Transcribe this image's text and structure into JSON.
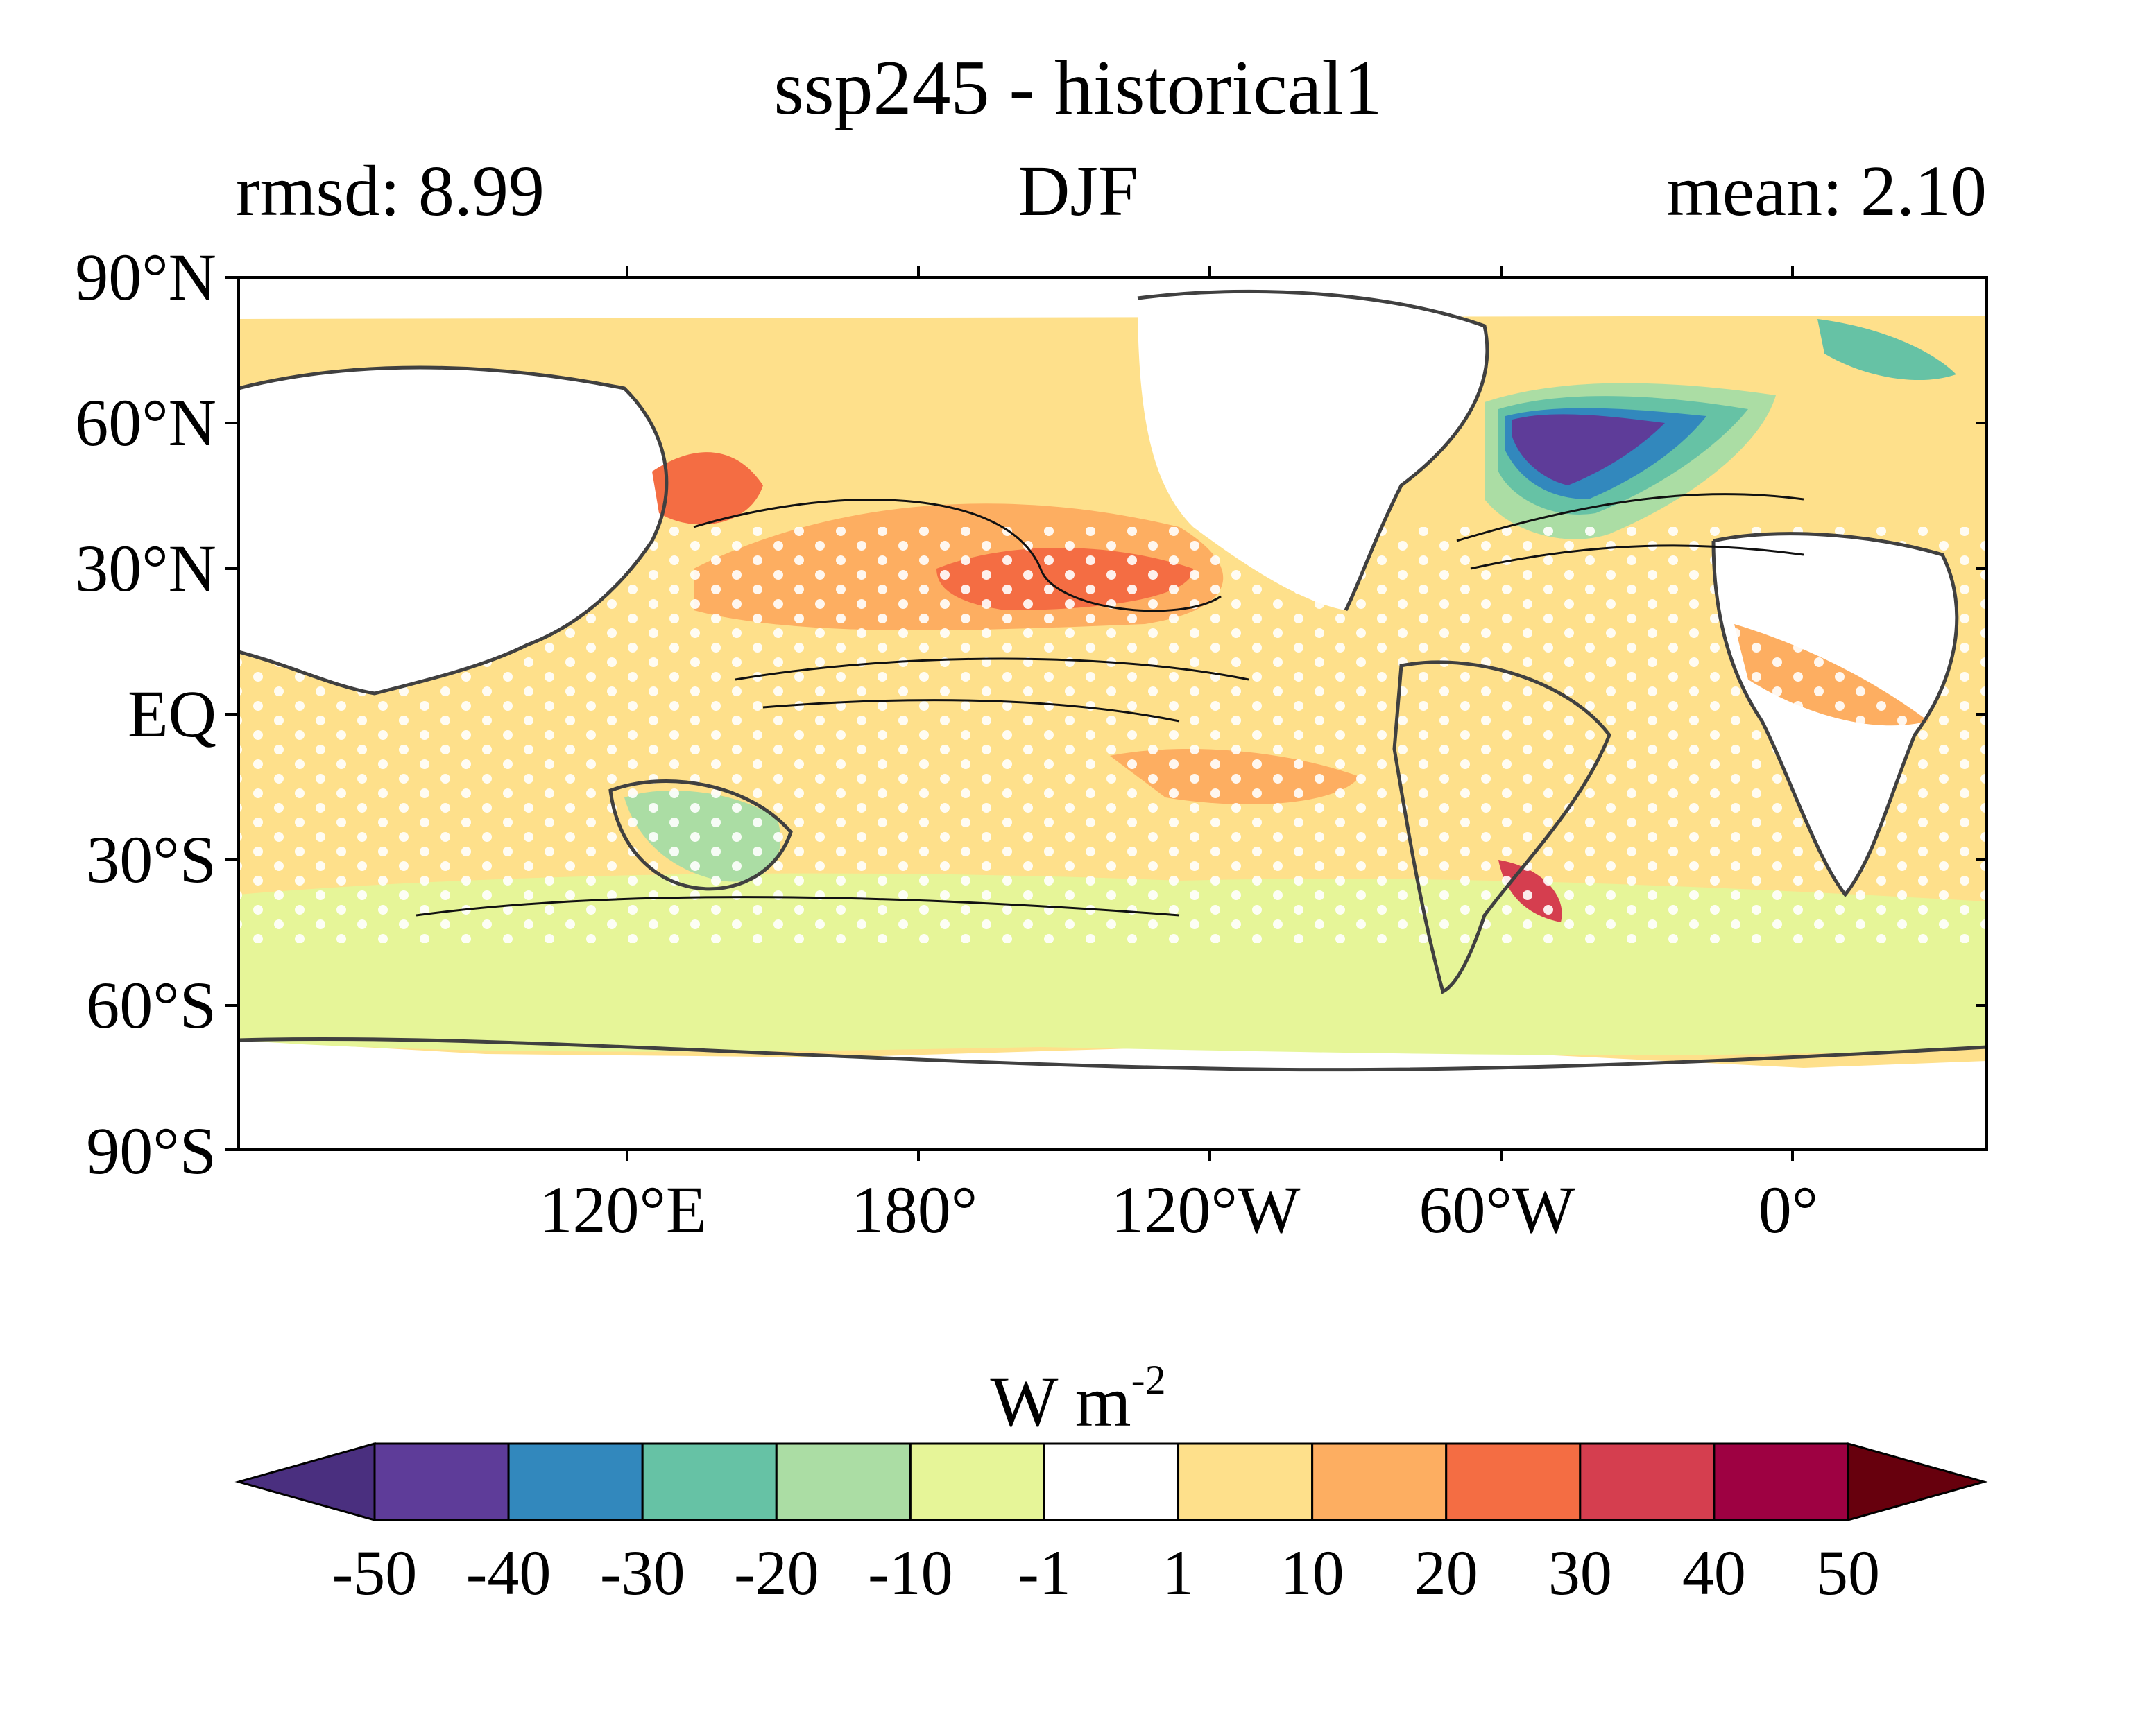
{
  "header": {
    "title": "ssp245 - historical1",
    "left_stat": "rmsd: 8.99",
    "season": "DJF",
    "right_stat": "mean: 2.10"
  },
  "axes": {
    "lat_ticks": [
      "90°N",
      "60°N",
      "30°N",
      "EQ",
      "30°S",
      "60°S",
      "90°S"
    ],
    "lon_ticks": [
      "120°E",
      "180°",
      "120°W",
      "60°W",
      "0°"
    ],
    "lon_tick_values": [
      120,
      180,
      240,
      300,
      360
    ],
    "lon_range": [
      40,
      400
    ],
    "lat_range": [
      -90,
      90
    ]
  },
  "colorbar": {
    "unit_main": "W m",
    "unit_exp": "-2",
    "levels": [
      "-50",
      "-40",
      "-30",
      "-20",
      "-10",
      "-1",
      "1",
      "10",
      "20",
      "30",
      "40",
      "50"
    ],
    "colors": [
      "#5e3c99",
      "#3288bd",
      "#66c2a5",
      "#abdda4",
      "#e6f598",
      "#ffffff",
      "#fee08b",
      "#fdae61",
      "#f46d43",
      "#d53e4f",
      "#9e0142"
    ],
    "under_color": "#4a2f7f",
    "over_color": "#67000d"
  }
}
